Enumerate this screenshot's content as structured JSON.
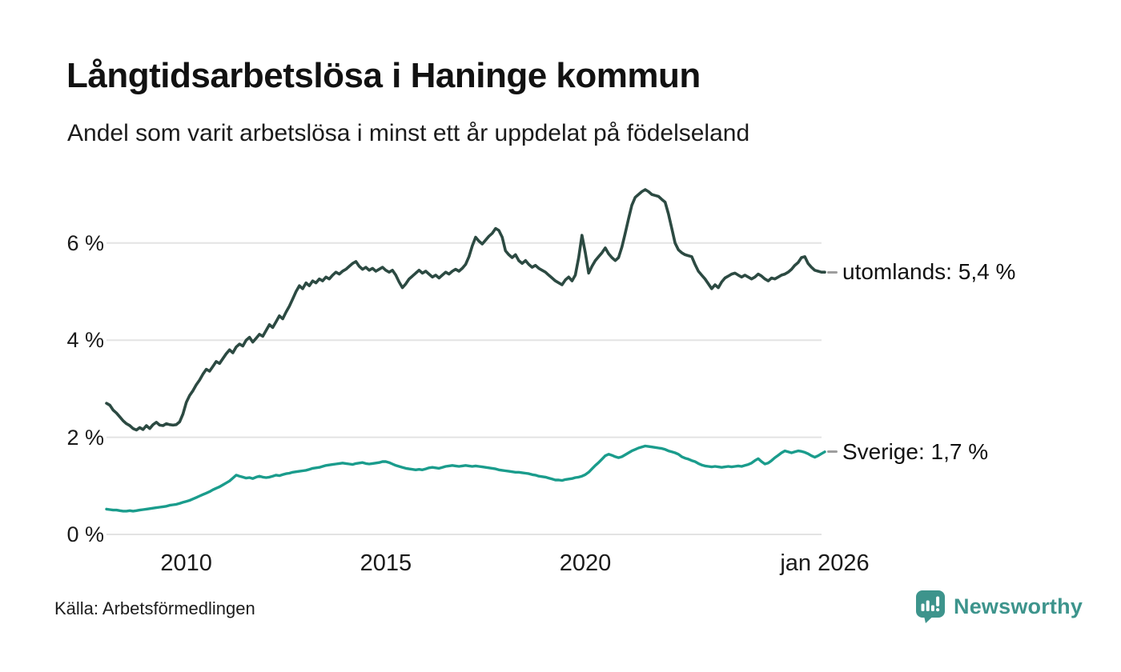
{
  "header": {
    "title": "Långtidsarbetslösa i Haninge kommun",
    "subtitle": "Andel som varit arbetslösa i minst ett år uppdelat på födelseland"
  },
  "footer": {
    "source": "Källa: Arbetsförmedlingen",
    "brand": "Newsworthy",
    "brand_color": "#3d948c"
  },
  "colors": {
    "grid": "#e3e3e3",
    "dash": "#9e9e9e",
    "background": "#ffffff"
  },
  "chart_data": {
    "type": "line",
    "title": "Långtidsarbetslösa i Haninge kommun",
    "subtitle": "Andel som varit arbetslösa i minst ett år uppdelat på födelseland",
    "unit": "%",
    "grid": "horizontal",
    "legend_position": "right-end-of-line",
    "x_range": [
      2008,
      2026
    ],
    "y_range": [
      0,
      7.35
    ],
    "x_ticks": [
      {
        "value": 2010,
        "label": "2010"
      },
      {
        "value": 2015,
        "label": "2015"
      },
      {
        "value": 2020,
        "label": "2020"
      },
      {
        "value": 2026,
        "label": "jan 2026"
      }
    ],
    "y_ticks": [
      {
        "value": 0,
        "label": "0 %"
      },
      {
        "value": 2,
        "label": "2 %"
      },
      {
        "value": 4,
        "label": "4 %"
      },
      {
        "value": 6,
        "label": "6 %"
      }
    ],
    "series": [
      {
        "name": "utomlands",
        "label": "utomlands: 5,4 %",
        "latest_value": 5.4,
        "color": "#2c4a42",
        "start_year": 2008,
        "points_per_year": 12,
        "values": [
          2.7,
          2.66,
          2.56,
          2.5,
          2.42,
          2.34,
          2.28,
          2.24,
          2.18,
          2.15,
          2.2,
          2.16,
          2.24,
          2.18,
          2.26,
          2.31,
          2.25,
          2.24,
          2.28,
          2.26,
          2.25,
          2.26,
          2.32,
          2.48,
          2.72,
          2.86,
          2.96,
          3.08,
          3.18,
          3.3,
          3.4,
          3.36,
          3.46,
          3.56,
          3.52,
          3.62,
          3.72,
          3.8,
          3.74,
          3.86,
          3.92,
          3.88,
          4.0,
          4.06,
          3.96,
          4.04,
          4.12,
          4.08,
          4.2,
          4.32,
          4.26,
          4.38,
          4.5,
          4.44,
          4.58,
          4.7,
          4.85,
          5.0,
          5.12,
          5.06,
          5.18,
          5.12,
          5.22,
          5.18,
          5.26,
          5.22,
          5.3,
          5.26,
          5.34,
          5.4,
          5.36,
          5.42,
          5.46,
          5.52,
          5.58,
          5.62,
          5.52,
          5.46,
          5.5,
          5.44,
          5.48,
          5.42,
          5.46,
          5.5,
          5.44,
          5.4,
          5.44,
          5.34,
          5.2,
          5.08,
          5.16,
          5.26,
          5.32,
          5.38,
          5.44,
          5.38,
          5.42,
          5.36,
          5.3,
          5.34,
          5.28,
          5.34,
          5.4,
          5.36,
          5.42,
          5.46,
          5.42,
          5.48,
          5.56,
          5.72,
          5.94,
          6.12,
          6.04,
          5.98,
          6.06,
          6.14,
          6.2,
          6.3,
          6.26,
          6.12,
          5.84,
          5.76,
          5.7,
          5.76,
          5.64,
          5.58,
          5.64,
          5.56,
          5.5,
          5.54,
          5.48,
          5.44,
          5.4,
          5.34,
          5.28,
          5.22,
          5.18,
          5.14,
          5.24,
          5.3,
          5.22,
          5.34,
          5.7,
          6.16,
          5.8,
          5.38,
          5.52,
          5.64,
          5.72,
          5.8,
          5.9,
          5.78,
          5.7,
          5.64,
          5.7,
          5.92,
          6.2,
          6.5,
          6.78,
          6.94,
          7.0,
          7.06,
          7.1,
          7.06,
          7.0,
          6.98,
          6.96,
          6.9,
          6.84,
          6.6,
          6.3,
          6.0,
          5.86,
          5.8,
          5.76,
          5.74,
          5.72,
          5.56,
          5.42,
          5.34,
          5.26,
          5.16,
          5.06,
          5.14,
          5.08,
          5.2,
          5.28,
          5.32,
          5.36,
          5.38,
          5.34,
          5.3,
          5.34,
          5.3,
          5.26,
          5.3,
          5.36,
          5.32,
          5.26,
          5.22,
          5.28,
          5.26,
          5.3,
          5.34,
          5.36,
          5.4,
          5.46,
          5.54,
          5.6,
          5.7,
          5.72,
          5.58,
          5.5,
          5.44,
          5.42,
          5.4,
          5.4
        ]
      },
      {
        "name": "Sverige",
        "label": "Sverige: 1,7 %",
        "latest_value": 1.7,
        "color": "#1a9c8c",
        "start_year": 2008,
        "points_per_year": 12,
        "values": [
          0.52,
          0.51,
          0.5,
          0.5,
          0.49,
          0.48,
          0.48,
          0.49,
          0.48,
          0.49,
          0.5,
          0.51,
          0.52,
          0.53,
          0.54,
          0.55,
          0.56,
          0.57,
          0.58,
          0.6,
          0.61,
          0.62,
          0.64,
          0.66,
          0.68,
          0.7,
          0.73,
          0.76,
          0.79,
          0.82,
          0.85,
          0.88,
          0.92,
          0.95,
          0.98,
          1.02,
          1.06,
          1.1,
          1.16,
          1.22,
          1.2,
          1.18,
          1.16,
          1.17,
          1.15,
          1.18,
          1.2,
          1.18,
          1.17,
          1.18,
          1.2,
          1.22,
          1.21,
          1.23,
          1.25,
          1.26,
          1.28,
          1.29,
          1.3,
          1.31,
          1.32,
          1.34,
          1.36,
          1.37,
          1.38,
          1.4,
          1.42,
          1.43,
          1.44,
          1.45,
          1.46,
          1.47,
          1.46,
          1.45,
          1.44,
          1.46,
          1.47,
          1.48,
          1.46,
          1.45,
          1.46,
          1.47,
          1.48,
          1.5,
          1.5,
          1.48,
          1.45,
          1.42,
          1.4,
          1.38,
          1.36,
          1.35,
          1.34,
          1.33,
          1.34,
          1.33,
          1.35,
          1.37,
          1.38,
          1.37,
          1.36,
          1.38,
          1.4,
          1.41,
          1.42,
          1.41,
          1.4,
          1.41,
          1.42,
          1.41,
          1.4,
          1.41,
          1.4,
          1.39,
          1.38,
          1.37,
          1.36,
          1.35,
          1.33,
          1.32,
          1.31,
          1.3,
          1.29,
          1.28,
          1.28,
          1.27,
          1.26,
          1.25,
          1.23,
          1.22,
          1.2,
          1.19,
          1.18,
          1.16,
          1.14,
          1.12,
          1.12,
          1.11,
          1.13,
          1.14,
          1.15,
          1.17,
          1.18,
          1.2,
          1.23,
          1.28,
          1.35,
          1.42,
          1.48,
          1.55,
          1.62,
          1.65,
          1.63,
          1.6,
          1.58,
          1.6,
          1.64,
          1.68,
          1.72,
          1.75,
          1.78,
          1.8,
          1.82,
          1.81,
          1.8,
          1.79,
          1.78,
          1.77,
          1.75,
          1.72,
          1.7,
          1.68,
          1.65,
          1.6,
          1.57,
          1.55,
          1.52,
          1.5,
          1.46,
          1.43,
          1.41,
          1.4,
          1.39,
          1.4,
          1.39,
          1.38,
          1.39,
          1.4,
          1.39,
          1.4,
          1.41,
          1.4,
          1.42,
          1.44,
          1.47,
          1.52,
          1.56,
          1.5,
          1.45,
          1.47,
          1.52,
          1.58,
          1.63,
          1.68,
          1.72,
          1.7,
          1.68,
          1.7,
          1.72,
          1.71,
          1.69,
          1.66,
          1.62,
          1.59,
          1.62,
          1.66,
          1.7
        ]
      }
    ]
  }
}
